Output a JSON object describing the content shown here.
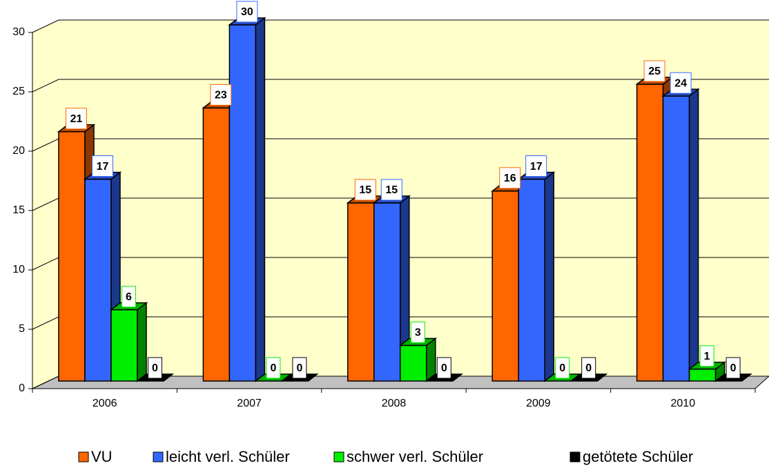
{
  "chart_data": {
    "type": "bar3d",
    "categories": [
      "2006",
      "2007",
      "2008",
      "2009",
      "2010"
    ],
    "series": [
      {
        "name": "VU",
        "color": "#ff6600",
        "values": [
          21,
          23,
          15,
          16,
          25
        ]
      },
      {
        "name": "leicht verl. Schüler",
        "color": "#3366ff",
        "values": [
          17,
          30,
          15,
          17,
          24
        ]
      },
      {
        "name": "schwer verl. Schüler",
        "color": "#00ee00",
        "values": [
          6,
          0,
          3,
          0,
          1
        ]
      },
      {
        "name": "getötete Schüler",
        "color": "#000000",
        "values": [
          0,
          0,
          0,
          0,
          0
        ]
      }
    ],
    "ylim": [
      0,
      30
    ],
    "yticks": [
      0,
      5,
      10,
      15,
      20,
      25,
      30
    ],
    "grid": true,
    "legend": "bottom"
  }
}
